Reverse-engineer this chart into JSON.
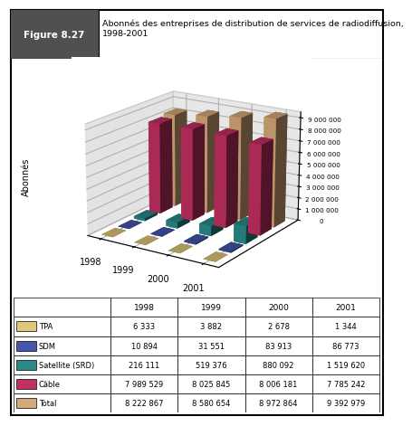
{
  "title": "Abonnés des entreprises de distribution de services de radiodiffusion,\n1998-2001",
  "figure_label": "Figure 8.27",
  "ylabel": "Abonnés",
  "years": [
    "1998",
    "1999",
    "2000",
    "2001"
  ],
  "series_names": [
    "TPA",
    "SDM",
    "Satellite (SRD)",
    "Câble",
    "Total"
  ],
  "series": {
    "TPA": [
      6333,
      3882,
      2678,
      1344
    ],
    "SDM": [
      10894,
      31551,
      83913,
      86773
    ],
    "Satellite (SRD)": [
      216111,
      519376,
      880092,
      1519620
    ],
    "Câble": [
      7989529,
      8025845,
      8006181,
      7785242
    ],
    "Total": [
      8222867,
      8580654,
      8972864,
      9392979
    ]
  },
  "colors": {
    "TPA": "#dfc878",
    "SDM": "#4455aa",
    "Satellite (SRD)": "#2a8a8a",
    "Câble": "#c03060",
    "Total": "#d4a878"
  },
  "yticks": [
    0,
    1000000,
    2000000,
    3000000,
    4000000,
    5000000,
    6000000,
    7000000,
    8000000,
    9000000
  ],
  "ytick_labels": [
    "0",
    "1 000 000",
    "2 000 000",
    "3 000 000",
    "4 000 000",
    "5 000 000",
    "6 000 000",
    "7 000 000",
    "8 000 000",
    "9 000 000"
  ],
  "floor_color": "#c8c8c8",
  "table_data": [
    [
      "TPA",
      "6 333",
      "3 882",
      "2 678",
      "1 344"
    ],
    [
      "SDM",
      "10 894",
      "31 551",
      "83 913",
      "86 773"
    ],
    [
      "Satellite (SRD)",
      "216 111",
      "519 376",
      "880 092",
      "1 519 620"
    ],
    [
      "Câble",
      "7 989 529",
      "8 025 845",
      "8 006 181",
      "7 785 242"
    ],
    [
      "Total",
      "8 222 867",
      "8 580 654",
      "8 972 864",
      "9 392 979"
    ]
  ]
}
